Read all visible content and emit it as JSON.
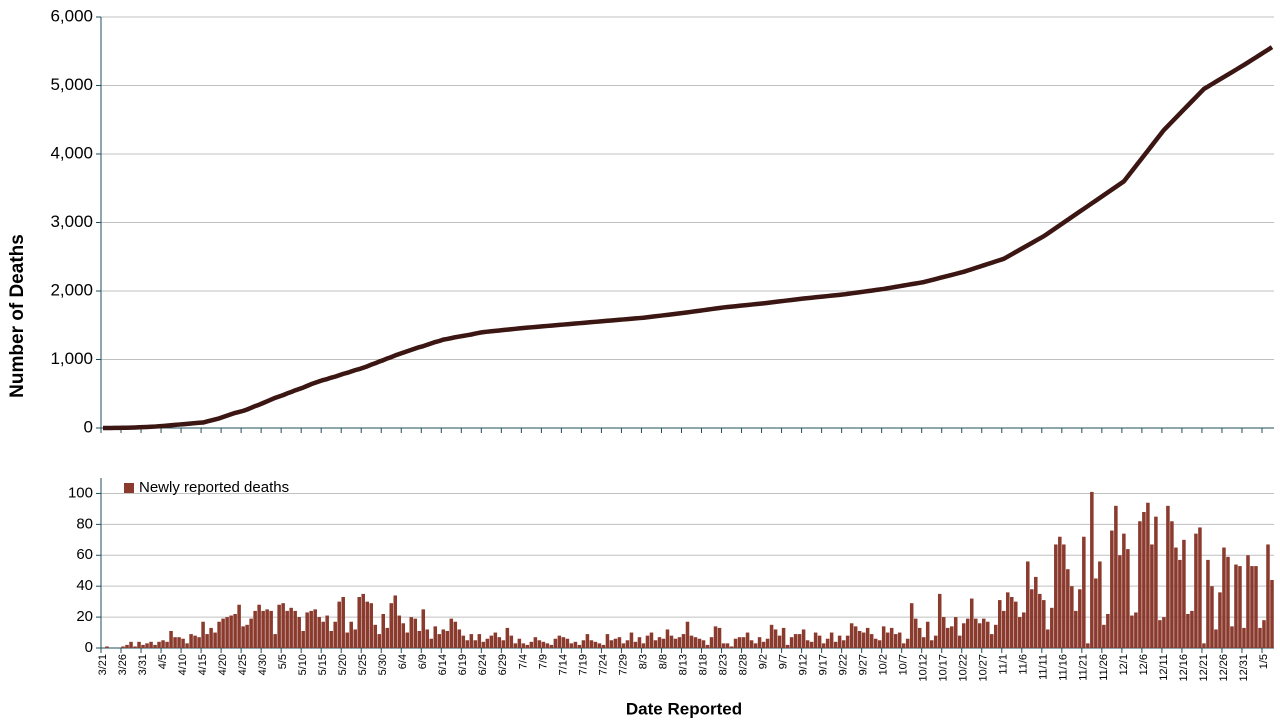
{
  "chart_data": [
    {
      "type": "line",
      "ylabel": "Number of Deaths",
      "ylim": [
        0,
        6000
      ],
      "yticks": [
        0,
        {
          "value": 1000,
          "label": "1,000"
        },
        {
          "value": 2000,
          "label": "2,000"
        },
        {
          "value": 3000,
          "label": "3,000"
        },
        {
          "value": 4000,
          "label": "4,000"
        },
        {
          "value": 5000,
          "label": "5,000"
        },
        {
          "value": 6000,
          "label": "6,000"
        }
      ],
      "grid": true,
      "series": [
        {
          "color": "#3b1612",
          "values": [
            0,
            0,
            0,
            1,
            2,
            3,
            4,
            6,
            8,
            10,
            12,
            15,
            18,
            21,
            25,
            30,
            35,
            40,
            45,
            50,
            55,
            60,
            66,
            72,
            76,
            80,
            95,
            110,
            125,
            140,
            160,
            180,
            200,
            220,
            235,
            250,
            270,
            295,
            320,
            340,
            365,
            390,
            415,
            440,
            460,
            480,
            505,
            525,
            550,
            570,
            590,
            615,
            640,
            660,
            680,
            700,
            715,
            735,
            750,
            770,
            790,
            805,
            825,
            845,
            860,
            880,
            900,
            925,
            945,
            970,
            990,
            1015,
            1035,
            1060,
            1080,
            1100,
            1120,
            1140,
            1160,
            1180,
            1195,
            1215,
            1235,
            1255,
            1270,
            1290,
            1300,
            1312,
            1325,
            1335,
            1345,
            1355,
            1365,
            1378,
            1390,
            1400,
            1406,
            1412,
            1418,
            1424,
            1430,
            1436,
            1442,
            1448,
            1454,
            1460,
            1465,
            1470,
            1475,
            1480,
            1485,
            1490,
            1495,
            1500,
            1505,
            1510,
            1515,
            1520,
            1525,
            1530,
            1535,
            1540,
            1545,
            1550,
            1555,
            1560,
            1565,
            1570,
            1575,
            1580,
            1585,
            1590,
            1595,
            1600,
            1605,
            1610,
            1617,
            1624,
            1631,
            1638,
            1645,
            1652,
            1659,
            1666,
            1673,
            1680,
            1688,
            1696,
            1704,
            1712,
            1720,
            1728,
            1736,
            1744,
            1752,
            1760,
            1766,
            1772,
            1778,
            1784,
            1790,
            1796,
            1802,
            1808,
            1814,
            1820,
            1827,
            1834,
            1841,
            1848,
            1855,
            1862,
            1869,
            1876,
            1883,
            1890,
            1896,
            1902,
            1908,
            1914,
            1920,
            1926,
            1932,
            1938,
            1944,
            1950,
            1958,
            1966,
            1974,
            1982,
            1990,
            1998,
            2006,
            2014,
            2022,
            2030,
            2040,
            2050,
            2060,
            2070,
            2080,
            2090,
            2100,
            2110,
            2120,
            2130,
            2145,
            2160,
            2175,
            2190,
            2205,
            2220,
            2235,
            2250,
            2265,
            2280,
            2299,
            2318,
            2337,
            2356,
            2375,
            2394,
            2413,
            2432,
            2451,
            2470,
            2503,
            2536,
            2569,
            2602,
            2635,
            2668,
            2701,
            2734,
            2767,
            2800,
            2840,
            2880,
            2920,
            2960,
            3000,
            3040,
            3080,
            3120,
            3160,
            3200,
            3240,
            3280,
            3320,
            3360,
            3400,
            3440,
            3480,
            3520,
            3560,
            3600,
            3675,
            3750,
            3825,
            3900,
            3975,
            4050,
            4125,
            4200,
            4275,
            4350,
            4410,
            4470,
            4530,
            4590,
            4650,
            4710,
            4770,
            4830,
            4890,
            4950,
            4985,
            5020,
            5055,
            5090,
            5125,
            5160,
            5195,
            5230,
            5265,
            5300,
            5337,
            5374,
            5411,
            5448,
            5485,
            5522,
            5560
          ]
        }
      ]
    },
    {
      "type": "bar",
      "xlabel": "Date Reported",
      "ylim": [
        0,
        110
      ],
      "yticks": [
        0,
        20,
        40,
        60,
        80,
        100
      ],
      "grid": true,
      "legend": "top-left",
      "categories": [
        "3/21",
        null,
        null,
        null,
        null,
        "3/26",
        null,
        null,
        null,
        null,
        "3/31",
        null,
        null,
        null,
        null,
        "4/5",
        null,
        null,
        null,
        null,
        "4/10",
        null,
        null,
        null,
        null,
        "4/15",
        null,
        null,
        null,
        null,
        "4/20",
        null,
        null,
        null,
        null,
        "4/25",
        null,
        null,
        null,
        null,
        "4/30",
        null,
        null,
        null,
        null,
        "5/5",
        null,
        null,
        null,
        null,
        "5/10",
        null,
        null,
        null,
        null,
        "5/15",
        null,
        null,
        null,
        null,
        "5/20",
        null,
        null,
        null,
        null,
        "5/25",
        null,
        null,
        null,
        null,
        "5/30",
        null,
        null,
        null,
        null,
        "6/4",
        null,
        null,
        null,
        null,
        "6/9",
        null,
        null,
        null,
        null,
        "6/14",
        null,
        null,
        null,
        null,
        "6/19",
        null,
        null,
        null,
        null,
        "6/24",
        null,
        null,
        null,
        null,
        "6/29",
        null,
        null,
        null,
        null,
        "7/4",
        null,
        null,
        null,
        null,
        "7/9",
        null,
        null,
        null,
        null,
        "7/14",
        null,
        null,
        null,
        null,
        "7/19",
        null,
        null,
        null,
        null,
        "7/24",
        null,
        null,
        null,
        null,
        "7/29",
        null,
        null,
        null,
        null,
        "8/3",
        null,
        null,
        null,
        null,
        "8/8",
        null,
        null,
        null,
        null,
        "8/13",
        null,
        null,
        null,
        null,
        "8/18",
        null,
        null,
        null,
        null,
        "8/23",
        null,
        null,
        null,
        null,
        "8/28",
        null,
        null,
        null,
        null,
        "9/2",
        null,
        null,
        null,
        null,
        "9/7",
        null,
        null,
        null,
        null,
        "9/12",
        null,
        null,
        null,
        null,
        "9/17",
        null,
        null,
        null,
        null,
        "9/22",
        null,
        null,
        null,
        null,
        "9/27",
        null,
        null,
        null,
        null,
        "10/2",
        null,
        null,
        null,
        null,
        "10/7",
        null,
        null,
        null,
        null,
        "10/12",
        null,
        null,
        null,
        null,
        "10/17",
        null,
        null,
        null,
        null,
        "10/22",
        null,
        null,
        null,
        null,
        "10/27",
        null,
        null,
        null,
        null,
        "11/1",
        null,
        null,
        null,
        null,
        "11/6",
        null,
        null,
        null,
        null,
        "11/11",
        null,
        null,
        null,
        null,
        "11/16",
        null,
        null,
        null,
        null,
        "11/21",
        null,
        null,
        null,
        null,
        "11/26",
        null,
        null,
        null,
        null,
        "12/1",
        null,
        null,
        null,
        null,
        "12/6",
        null,
        null,
        null,
        null,
        "12/11",
        null,
        null,
        null,
        null,
        "12/16",
        null,
        null,
        null,
        null,
        "12/21",
        null,
        null,
        null,
        null,
        "12/26",
        null,
        null,
        null,
        null,
        "12/31",
        null,
        null,
        null,
        null,
        "1/5",
        null,
        null
      ],
      "series": [
        {
          "name": "Newly reported deaths",
          "color": "#8b3a2e",
          "values": [
            0,
            1,
            0,
            0,
            0,
            1,
            2,
            4,
            1,
            4,
            2,
            3,
            4,
            2,
            4,
            5,
            4,
            11,
            7,
            7,
            6,
            3,
            9,
            8,
            7,
            17,
            9,
            13,
            10,
            17,
            19,
            20,
            21,
            22,
            28,
            14,
            15,
            19,
            24,
            28,
            24,
            25,
            24,
            9,
            28,
            29,
            24,
            26,
            24,
            20,
            11,
            23,
            24,
            25,
            20,
            17,
            21,
            11,
            17,
            30,
            33,
            10,
            17,
            12,
            33,
            35,
            30,
            29,
            15,
            9,
            22,
            13,
            29,
            34,
            21,
            16,
            10,
            20,
            19,
            11,
            25,
            12,
            6,
            14,
            9,
            12,
            11,
            19,
            17,
            12,
            8,
            5,
            9,
            5,
            9,
            4,
            6,
            8,
            10,
            7,
            5,
            13,
            8,
            3,
            6,
            3,
            2,
            4,
            7,
            5,
            4,
            3,
            2,
            6,
            8,
            7,
            6,
            3,
            4,
            2,
            5,
            9,
            5,
            4,
            3,
            2,
            9,
            5,
            6,
            7,
            3,
            5,
            10,
            4,
            7,
            3,
            8,
            10,
            5,
            7,
            6,
            12,
            8,
            6,
            7,
            9,
            17,
            8,
            7,
            6,
            5,
            2,
            7,
            14,
            13,
            3,
            3,
            1,
            6,
            7,
            7,
            10,
            5,
            3,
            7,
            4,
            6,
            15,
            12,
            8,
            13,
            2,
            7,
            9,
            9,
            12,
            5,
            4,
            10,
            8,
            3,
            6,
            10,
            4,
            8,
            5,
            8,
            16,
            14,
            11,
            10,
            13,
            9,
            6,
            5,
            14,
            10,
            13,
            9,
            10,
            3,
            6,
            29,
            19,
            13,
            7,
            17,
            5,
            8,
            35,
            20,
            13,
            14,
            20,
            8,
            16,
            19,
            32,
            19,
            16,
            19,
            17,
            9,
            15,
            31,
            24,
            36,
            33,
            30,
            20,
            23,
            56,
            38,
            46,
            35,
            31,
            12,
            26,
            67,
            72,
            67,
            51,
            40,
            24,
            38,
            72,
            3,
            101,
            45,
            56,
            15,
            22,
            76,
            92,
            60,
            74,
            64,
            21,
            23,
            82,
            88,
            94,
            67,
            85,
            18,
            20,
            92,
            82,
            65,
            57,
            70,
            22,
            24,
            74,
            78,
            3,
            57,
            40,
            12,
            36,
            65,
            59,
            14,
            54,
            53,
            13,
            60,
            53,
            53,
            13,
            18,
            67,
            44
          ]
        }
      ]
    }
  ]
}
